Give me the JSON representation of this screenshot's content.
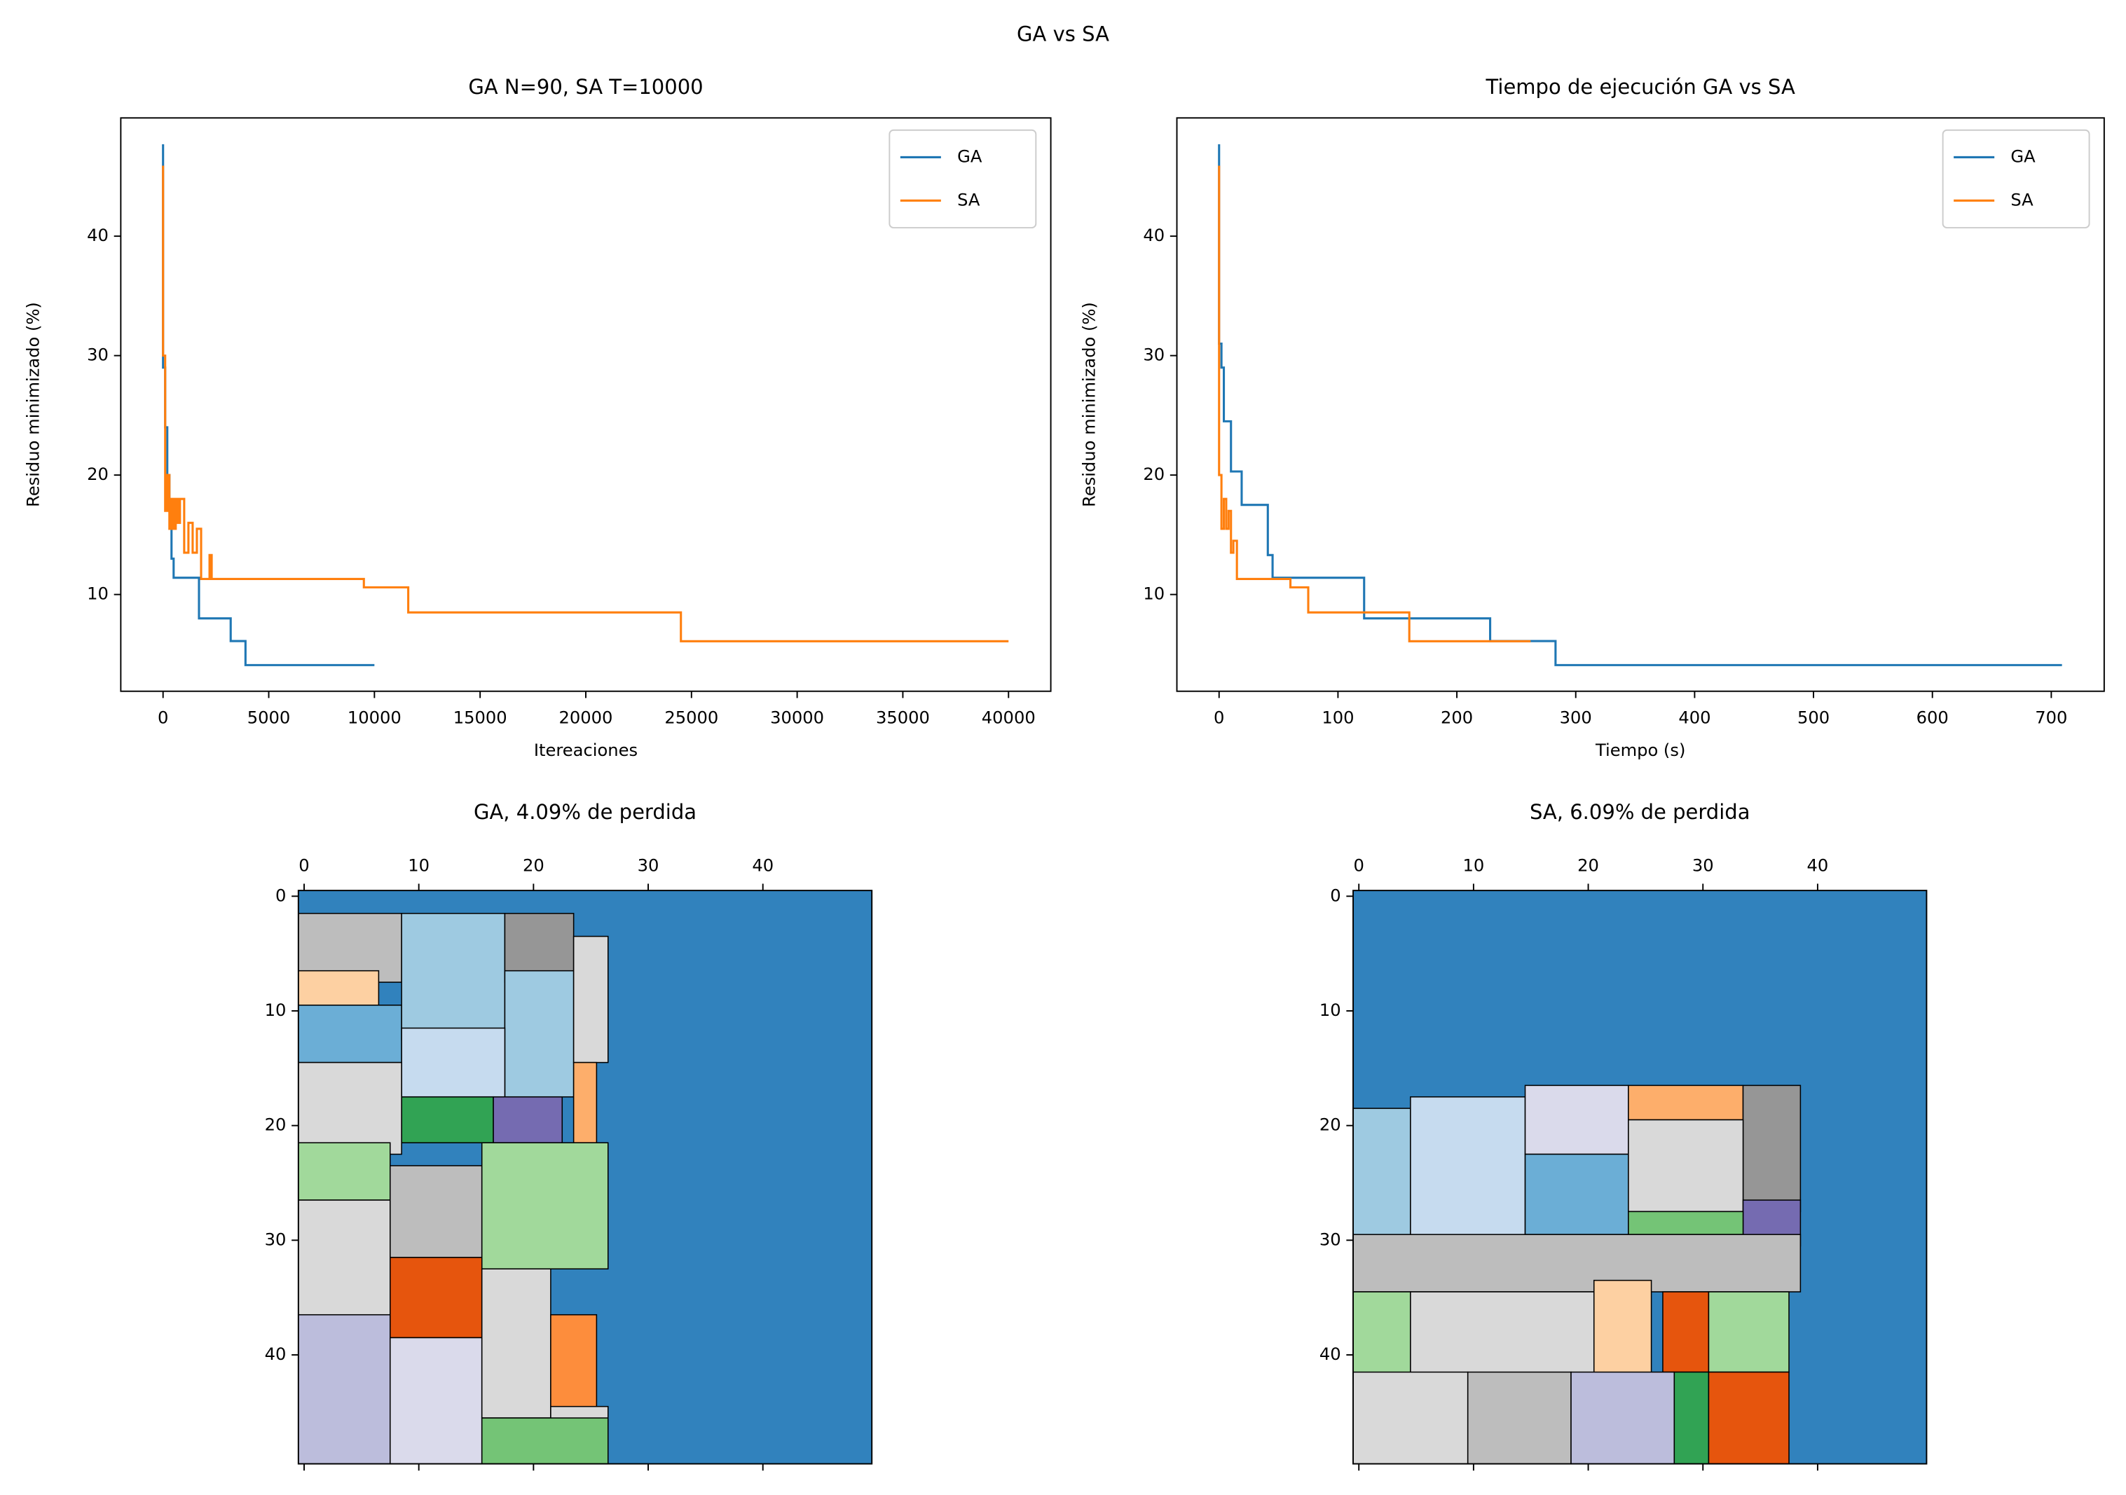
{
  "title": "GA vs SA",
  "chart_data": [
    {
      "type": "line",
      "title": "GA N=90, SA T=10000",
      "xlabel": "Itereaciones",
      "ylabel": "Residuo minimizado (%)",
      "xlim": [
        -2000,
        42000
      ],
      "ylim": [
        1.9,
        49.9
      ],
      "xticks": [
        0,
        5000,
        10000,
        15000,
        20000,
        25000,
        30000,
        35000,
        40000
      ],
      "yticks": [
        10,
        20,
        30,
        40
      ],
      "legend": "upper right",
      "series": [
        {
          "name": "GA",
          "color": "#1f77b4",
          "x": [
            0,
            0,
            100,
            100,
            200,
            200,
            300,
            300,
            400,
            400,
            500,
            500,
            1700,
            1700,
            3200,
            3200,
            3900,
            3900,
            10000
          ],
          "values": [
            47.7,
            29,
            29,
            24,
            24,
            20,
            20,
            17,
            17,
            13,
            13,
            11.4,
            11.4,
            8,
            8,
            6.1,
            6.1,
            4.09,
            4.09
          ]
        },
        {
          "name": "SA",
          "color": "#ff7f0e",
          "x": [
            0,
            0,
            100,
            100,
            200,
            200,
            300,
            300,
            400,
            400,
            500,
            500,
            600,
            600,
            700,
            700,
            800,
            800,
            1000,
            1000,
            1200,
            1200,
            1400,
            1400,
            1600,
            1600,
            1800,
            1800,
            2200,
            2200,
            2300,
            2300,
            9500,
            9500,
            11600,
            11600,
            24500,
            24500,
            40000
          ],
          "values": [
            45.9,
            30,
            30,
            17,
            17,
            20,
            20,
            15.5,
            15.5,
            18,
            18,
            15.5,
            15.5,
            18,
            18,
            16,
            16,
            18,
            18,
            13.5,
            13.5,
            16,
            16,
            13.5,
            13.5,
            15.5,
            15.5,
            11.3,
            11.3,
            13.3,
            13.3,
            11.3,
            11.3,
            10.6,
            10.6,
            8.5,
            8.5,
            6.09,
            6.09
          ]
        }
      ]
    },
    {
      "type": "line",
      "title": "Tiempo de ejecución GA vs SA",
      "xlabel": "Tiempo (s)",
      "ylabel": "Residuo minimizado (%)",
      "xlim": [
        -35.5,
        744.5
      ],
      "ylim": [
        1.9,
        49.9
      ],
      "xticks": [
        0,
        100,
        200,
        300,
        400,
        500,
        600,
        700
      ],
      "yticks": [
        10,
        20,
        30,
        40
      ],
      "legend": "upper right",
      "series": [
        {
          "name": "GA",
          "color": "#1f77b4",
          "x": [
            0,
            0,
            2,
            2,
            4,
            4,
            10,
            10,
            19,
            19,
            41,
            41,
            45,
            45,
            122,
            122,
            228,
            228,
            283,
            283,
            709
          ],
          "values": [
            47.7,
            31,
            31,
            29,
            29,
            24.5,
            24.5,
            20.3,
            20.3,
            17.5,
            17.5,
            13.3,
            13.3,
            11.4,
            11.4,
            8,
            8,
            6.1,
            6.1,
            4.09,
            4.09
          ]
        },
        {
          "name": "SA",
          "color": "#ff7f0e",
          "x": [
            0,
            0,
            2,
            2,
            4,
            4,
            6,
            6,
            8,
            8,
            10,
            10,
            12,
            12,
            15,
            15,
            60,
            60,
            75,
            75,
            160,
            160,
            262
          ],
          "values": [
            45.9,
            20,
            20,
            15.5,
            15.5,
            18,
            18,
            15.5,
            15.5,
            17,
            17,
            13.5,
            13.5,
            14.5,
            14.5,
            11.3,
            11.3,
            10.6,
            10.6,
            8.5,
            8.5,
            6.09,
            6.09
          ]
        }
      ]
    },
    {
      "type": "image",
      "title": "GA, 4.09% de perdida",
      "xlim": [
        -0.5,
        49.5
      ],
      "ylim": [
        49.5,
        -0.5
      ],
      "xticks": [
        0,
        10,
        20,
        30,
        40
      ],
      "yticks": [
        0,
        10,
        20,
        30,
        40
      ],
      "background": "#3182bd",
      "rects": [
        {
          "x": 0,
          "y": 2,
          "w": 9,
          "h": 6,
          "color": "#bdbdbd"
        },
        {
          "x": 0,
          "y": 7,
          "w": 7,
          "h": 3,
          "color": "#fdd0a2"
        },
        {
          "x": 0,
          "y": 10,
          "w": 9,
          "h": 5,
          "color": "#6baed6"
        },
        {
          "x": 9,
          "y": 2,
          "w": 9,
          "h": 11,
          "color": "#9ecae1"
        },
        {
          "x": 18,
          "y": 2,
          "w": 6,
          "h": 6,
          "color": "#969696"
        },
        {
          "x": 18,
          "y": 7,
          "w": 6,
          "h": 11,
          "color": "#9ecae1"
        },
        {
          "x": 24,
          "y": 4,
          "w": 3,
          "h": 11,
          "color": "#d9d9d9"
        },
        {
          "x": 24,
          "y": 15,
          "w": 2,
          "h": 7,
          "color": "#fdae6b"
        },
        {
          "x": 9,
          "y": 12,
          "w": 9,
          "h": 6,
          "color": "#c6dbef"
        },
        {
          "x": 9,
          "y": 18,
          "w": 8,
          "h": 4,
          "color": "#31a354"
        },
        {
          "x": 17,
          "y": 18,
          "w": 6,
          "h": 4,
          "color": "#756bb1"
        },
        {
          "x": 0,
          "y": 15,
          "w": 9,
          "h": 8,
          "color": "#d9d9d9"
        },
        {
          "x": 0,
          "y": 22,
          "w": 8,
          "h": 5,
          "color": "#a1d99b"
        },
        {
          "x": 8,
          "y": 24,
          "w": 8,
          "h": 8,
          "color": "#bdbdbd"
        },
        {
          "x": 16,
          "y": 22,
          "w": 11,
          "h": 11,
          "color": "#a1d99b"
        },
        {
          "x": 8,
          "y": 32,
          "w": 8,
          "h": 7,
          "color": "#e6550d"
        },
        {
          "x": 0,
          "y": 27,
          "w": 8,
          "h": 11,
          "color": "#d9d9d9"
        },
        {
          "x": 0,
          "y": 37,
          "w": 8,
          "h": 13,
          "color": "#bcbddc"
        },
        {
          "x": 8,
          "y": 39,
          "w": 8,
          "h": 11,
          "color": "#dadaeb"
        },
        {
          "x": 16,
          "y": 33,
          "w": 6,
          "h": 13,
          "color": "#d9d9d9"
        },
        {
          "x": 22,
          "y": 37,
          "w": 4,
          "h": 9,
          "color": "#fd8d3c"
        },
        {
          "x": 22,
          "y": 45,
          "w": 5,
          "h": 2,
          "color": "#d9d9d9"
        },
        {
          "x": 16,
          "y": 46,
          "w": 11,
          "h": 4,
          "color": "#74c476"
        }
      ]
    },
    {
      "type": "image",
      "title": "SA, 6.09% de perdida",
      "xlim": [
        -0.5,
        49.5
      ],
      "ylim": [
        49.5,
        -0.5
      ],
      "xticks": [
        0,
        10,
        20,
        30,
        40
      ],
      "yticks": [
        0,
        10,
        20,
        30,
        40
      ],
      "background": "#3182bd",
      "rects": [
        {
          "x": 0,
          "y": 19,
          "w": 5,
          "h": 12,
          "color": "#9ecae1"
        },
        {
          "x": 5,
          "y": 18,
          "w": 10,
          "h": 13,
          "color": "#c6dbef"
        },
        {
          "x": 15,
          "y": 17,
          "w": 9,
          "h": 6,
          "color": "#dadaeb"
        },
        {
          "x": 24,
          "y": 17,
          "w": 10,
          "h": 3,
          "color": "#fdae6b"
        },
        {
          "x": 34,
          "y": 17,
          "w": 5,
          "h": 11,
          "color": "#969696"
        },
        {
          "x": 15,
          "y": 23,
          "w": 9,
          "h": 7,
          "color": "#6baed6"
        },
        {
          "x": 24,
          "y": 20,
          "w": 10,
          "h": 8,
          "color": "#d9d9d9"
        },
        {
          "x": 34,
          "y": 27,
          "w": 5,
          "h": 4,
          "color": "#756bb1"
        },
        {
          "x": 24,
          "y": 28,
          "w": 10,
          "h": 2,
          "color": "#74c476"
        },
        {
          "x": 0,
          "y": 30,
          "w": 39,
          "h": 5,
          "color": "#bdbdbd"
        },
        {
          "x": 0,
          "y": 35,
          "w": 5,
          "h": 8,
          "color": "#a1d99b"
        },
        {
          "x": 5,
          "y": 35,
          "w": 16,
          "h": 8,
          "color": "#d9d9d9"
        },
        {
          "x": 21,
          "y": 34,
          "w": 5,
          "h": 9,
          "color": "#fdd0a2"
        },
        {
          "x": 27,
          "y": 35,
          "w": 4,
          "h": 7,
          "color": "#e6550d"
        },
        {
          "x": 31,
          "y": 35,
          "w": 7,
          "h": 7,
          "color": "#a1d99b"
        },
        {
          "x": 0,
          "y": 42,
          "w": 10,
          "h": 8,
          "color": "#d9d9d9"
        },
        {
          "x": 10,
          "y": 42,
          "w": 9,
          "h": 8,
          "color": "#bdbdbd"
        },
        {
          "x": 19,
          "y": 42,
          "w": 9,
          "h": 8,
          "color": "#bcbddc"
        },
        {
          "x": 28,
          "y": 42,
          "w": 3,
          "h": 8,
          "color": "#31a354"
        },
        {
          "x": 31,
          "y": 42,
          "w": 7,
          "h": 8,
          "color": "#e6550d"
        }
      ]
    }
  ]
}
